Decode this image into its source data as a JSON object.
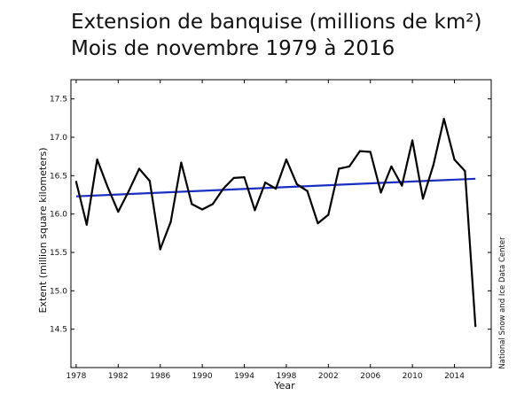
{
  "title_line1": "Extension de banquise (millions de km²)",
  "title_line2": "Mois de novembre 1979 à 2016",
  "credit": "National Snow and Ice Data Center",
  "colors": {
    "series": "#000000",
    "trend": "#1a2fc2",
    "axis": "#000000"
  },
  "chart_data": {
    "type": "line",
    "title": "Extension de banquise (millions de km²) Mois de novembre 1979 à 2016",
    "xlabel": "Year",
    "ylabel": "Extent (million square kilometers)",
    "xlim": [
      1977.5,
      2017.5
    ],
    "ylim": [
      14.0,
      17.75
    ],
    "xticks": [
      1978,
      1982,
      1986,
      1990,
      1994,
      1998,
      2002,
      2006,
      2010,
      2014
    ],
    "yticks": [
      14.5,
      15.0,
      15.5,
      16.0,
      16.5,
      17.0,
      17.5
    ],
    "grid": false,
    "series": [
      {
        "x": [
          1978,
          1979,
          1980,
          1981,
          1982,
          1983,
          1984,
          1985,
          1986,
          1987,
          1988,
          1989,
          1990,
          1991,
          1992,
          1993,
          1994,
          1995,
          1996,
          1997,
          1998,
          1999,
          2000,
          2001,
          2002,
          2003,
          2004,
          2005,
          2006,
          2007,
          2008,
          2009,
          2010,
          2011,
          2012,
          2013,
          2014,
          2015,
          2016
        ],
        "values": [
          16.42,
          15.86,
          16.71,
          16.35,
          16.03,
          16.3,
          16.59,
          16.43,
          15.54,
          15.9,
          16.67,
          16.13,
          16.06,
          16.13,
          16.33,
          16.47,
          16.48,
          16.05,
          16.41,
          16.33,
          16.71,
          16.39,
          16.3,
          15.88,
          15.99,
          16.59,
          16.62,
          16.82,
          16.81,
          16.28,
          16.62,
          16.37,
          16.96,
          16.2,
          16.64,
          17.24,
          16.71,
          16.56,
          14.54
        ]
      },
      {
        "x": [
          1978,
          2016
        ],
        "values": [
          16.23,
          16.46
        ]
      }
    ]
  }
}
